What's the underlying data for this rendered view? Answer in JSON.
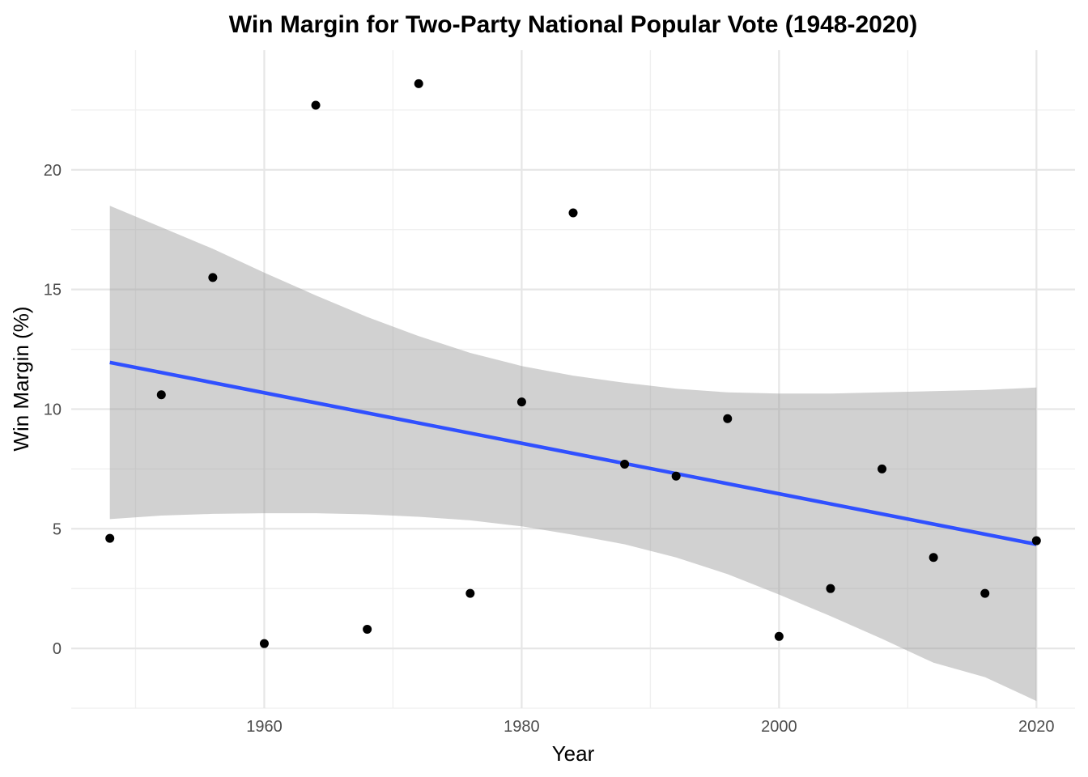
{
  "chart_data": {
    "type": "scatter",
    "title": "Win Margin for Two-Party National Popular Vote (1948-2020)",
    "xlabel": "Year",
    "ylabel": "Win Margin (%)",
    "xlim": [
      1945,
      2023
    ],
    "ylim": [
      -2.5,
      25
    ],
    "x_ticks": [
      1960,
      1980,
      2000,
      2020
    ],
    "y_ticks": [
      0,
      5,
      10,
      15,
      20
    ],
    "grid": true,
    "legend": "none",
    "point_color": "#000000",
    "points": [
      {
        "x": 1948,
        "y": 4.6
      },
      {
        "x": 1952,
        "y": 10.6
      },
      {
        "x": 1956,
        "y": 15.5
      },
      {
        "x": 1960,
        "y": 0.2
      },
      {
        "x": 1964,
        "y": 22.7
      },
      {
        "x": 1968,
        "y": 0.8
      },
      {
        "x": 1972,
        "y": 23.6
      },
      {
        "x": 1976,
        "y": 2.3
      },
      {
        "x": 1980,
        "y": 10.3
      },
      {
        "x": 1984,
        "y": 18.2
      },
      {
        "x": 1988,
        "y": 7.7
      },
      {
        "x": 1992,
        "y": 7.2
      },
      {
        "x": 1996,
        "y": 9.6
      },
      {
        "x": 2000,
        "y": 0.5
      },
      {
        "x": 2004,
        "y": 2.5
      },
      {
        "x": 2008,
        "y": 7.5
      },
      {
        "x": 2012,
        "y": 3.8
      },
      {
        "x": 2016,
        "y": 2.3
      },
      {
        "x": 2020,
        "y": 4.5
      }
    ],
    "fit": {
      "type": "linear",
      "color": "#3050ff",
      "line": [
        {
          "x": 1948,
          "y": 11.95
        },
        {
          "x": 2020,
          "y": 4.35
        }
      ],
      "confidence_band_color": "#999999",
      "confidence_band": [
        {
          "x": 1948,
          "lower": 5.4,
          "upper": 18.5
        },
        {
          "x": 1952,
          "lower": 5.55,
          "upper": 17.6
        },
        {
          "x": 1956,
          "lower": 5.62,
          "upper": 16.7
        },
        {
          "x": 1960,
          "lower": 5.65,
          "upper": 15.7
        },
        {
          "x": 1964,
          "lower": 5.65,
          "upper": 14.75
        },
        {
          "x": 1968,
          "lower": 5.6,
          "upper": 13.85
        },
        {
          "x": 1972,
          "lower": 5.5,
          "upper": 13.05
        },
        {
          "x": 1976,
          "lower": 5.35,
          "upper": 12.35
        },
        {
          "x": 1980,
          "lower": 5.1,
          "upper": 11.8
        },
        {
          "x": 1984,
          "lower": 4.75,
          "upper": 11.4
        },
        {
          "x": 1988,
          "lower": 4.35,
          "upper": 11.1
        },
        {
          "x": 1992,
          "lower": 3.8,
          "upper": 10.85
        },
        {
          "x": 1996,
          "lower": 3.1,
          "upper": 10.7
        },
        {
          "x": 2000,
          "lower": 2.25,
          "upper": 10.65
        },
        {
          "x": 2004,
          "lower": 1.35,
          "upper": 10.65
        },
        {
          "x": 2008,
          "lower": 0.4,
          "upper": 10.7
        },
        {
          "x": 2012,
          "lower": -0.6,
          "upper": 10.75
        },
        {
          "x": 2016,
          "lower": -1.2,
          "upper": 10.8
        },
        {
          "x": 2020,
          "lower": -2.2,
          "upper": 10.9
        }
      ]
    }
  }
}
